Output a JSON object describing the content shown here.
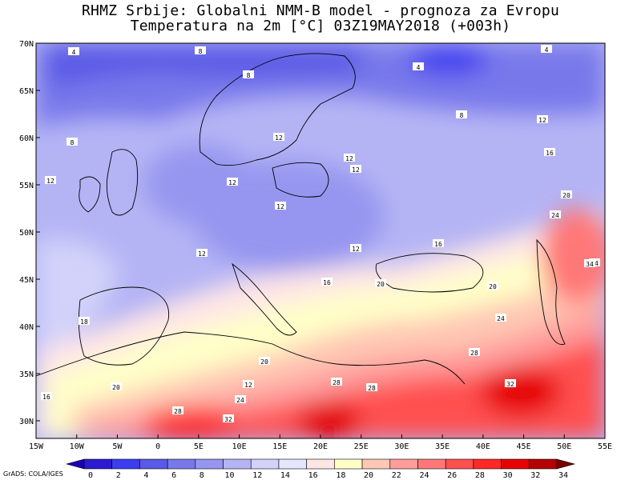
{
  "title_line1": "RHMZ Srbije: Globalni NMM-B model - prognoza za Evropu",
  "title_line2": "Temperatura na 2m [°C] 03Z19MAY2018 (+003h)",
  "lat_labels": [
    "70N",
    "65N",
    "60N",
    "55N",
    "50N",
    "45N",
    "40N",
    "35N",
    "30N"
  ],
  "lon_labels": [
    "15W",
    "10W",
    "5W",
    "0",
    "5E",
    "10E",
    "15E",
    "20E",
    "25E",
    "30E",
    "35E",
    "40E",
    "45E",
    "50E",
    "55E"
  ],
  "contour_labels": [
    "4",
    "8",
    "8",
    "8",
    "4",
    "4",
    "8",
    "12",
    "12",
    "16",
    "12",
    "12",
    "12",
    "12",
    "20",
    "24",
    "24",
    "16",
    "12",
    "16",
    "20",
    "20",
    "18",
    "20",
    "24",
    "28",
    "28",
    "28",
    "32",
    "32",
    "28",
    "24",
    "16",
    "20",
    "12",
    "12",
    "12",
    "34"
  ],
  "legend_values": [
    "0",
    "2",
    "4",
    "6",
    "8",
    "10",
    "12",
    "14",
    "16",
    "18",
    "20",
    "22",
    "24",
    "26",
    "28",
    "30",
    "32",
    "34"
  ],
  "legend_colors": [
    "#1a00b4",
    "#2c19d2",
    "#3c3cf0",
    "#5a5ae6",
    "#7878eb",
    "#9696f0",
    "#b4b4f5",
    "#d2d2fa",
    "#e6e6ff",
    "#ffe6e6",
    "#ffffc8",
    "#ffc8b4",
    "#ff9c9c",
    "#ff7878",
    "#ff5050",
    "#ff2828",
    "#e60000",
    "#b40000",
    "#780000"
  ],
  "credit": "GrADS: COLA/IGES"
}
